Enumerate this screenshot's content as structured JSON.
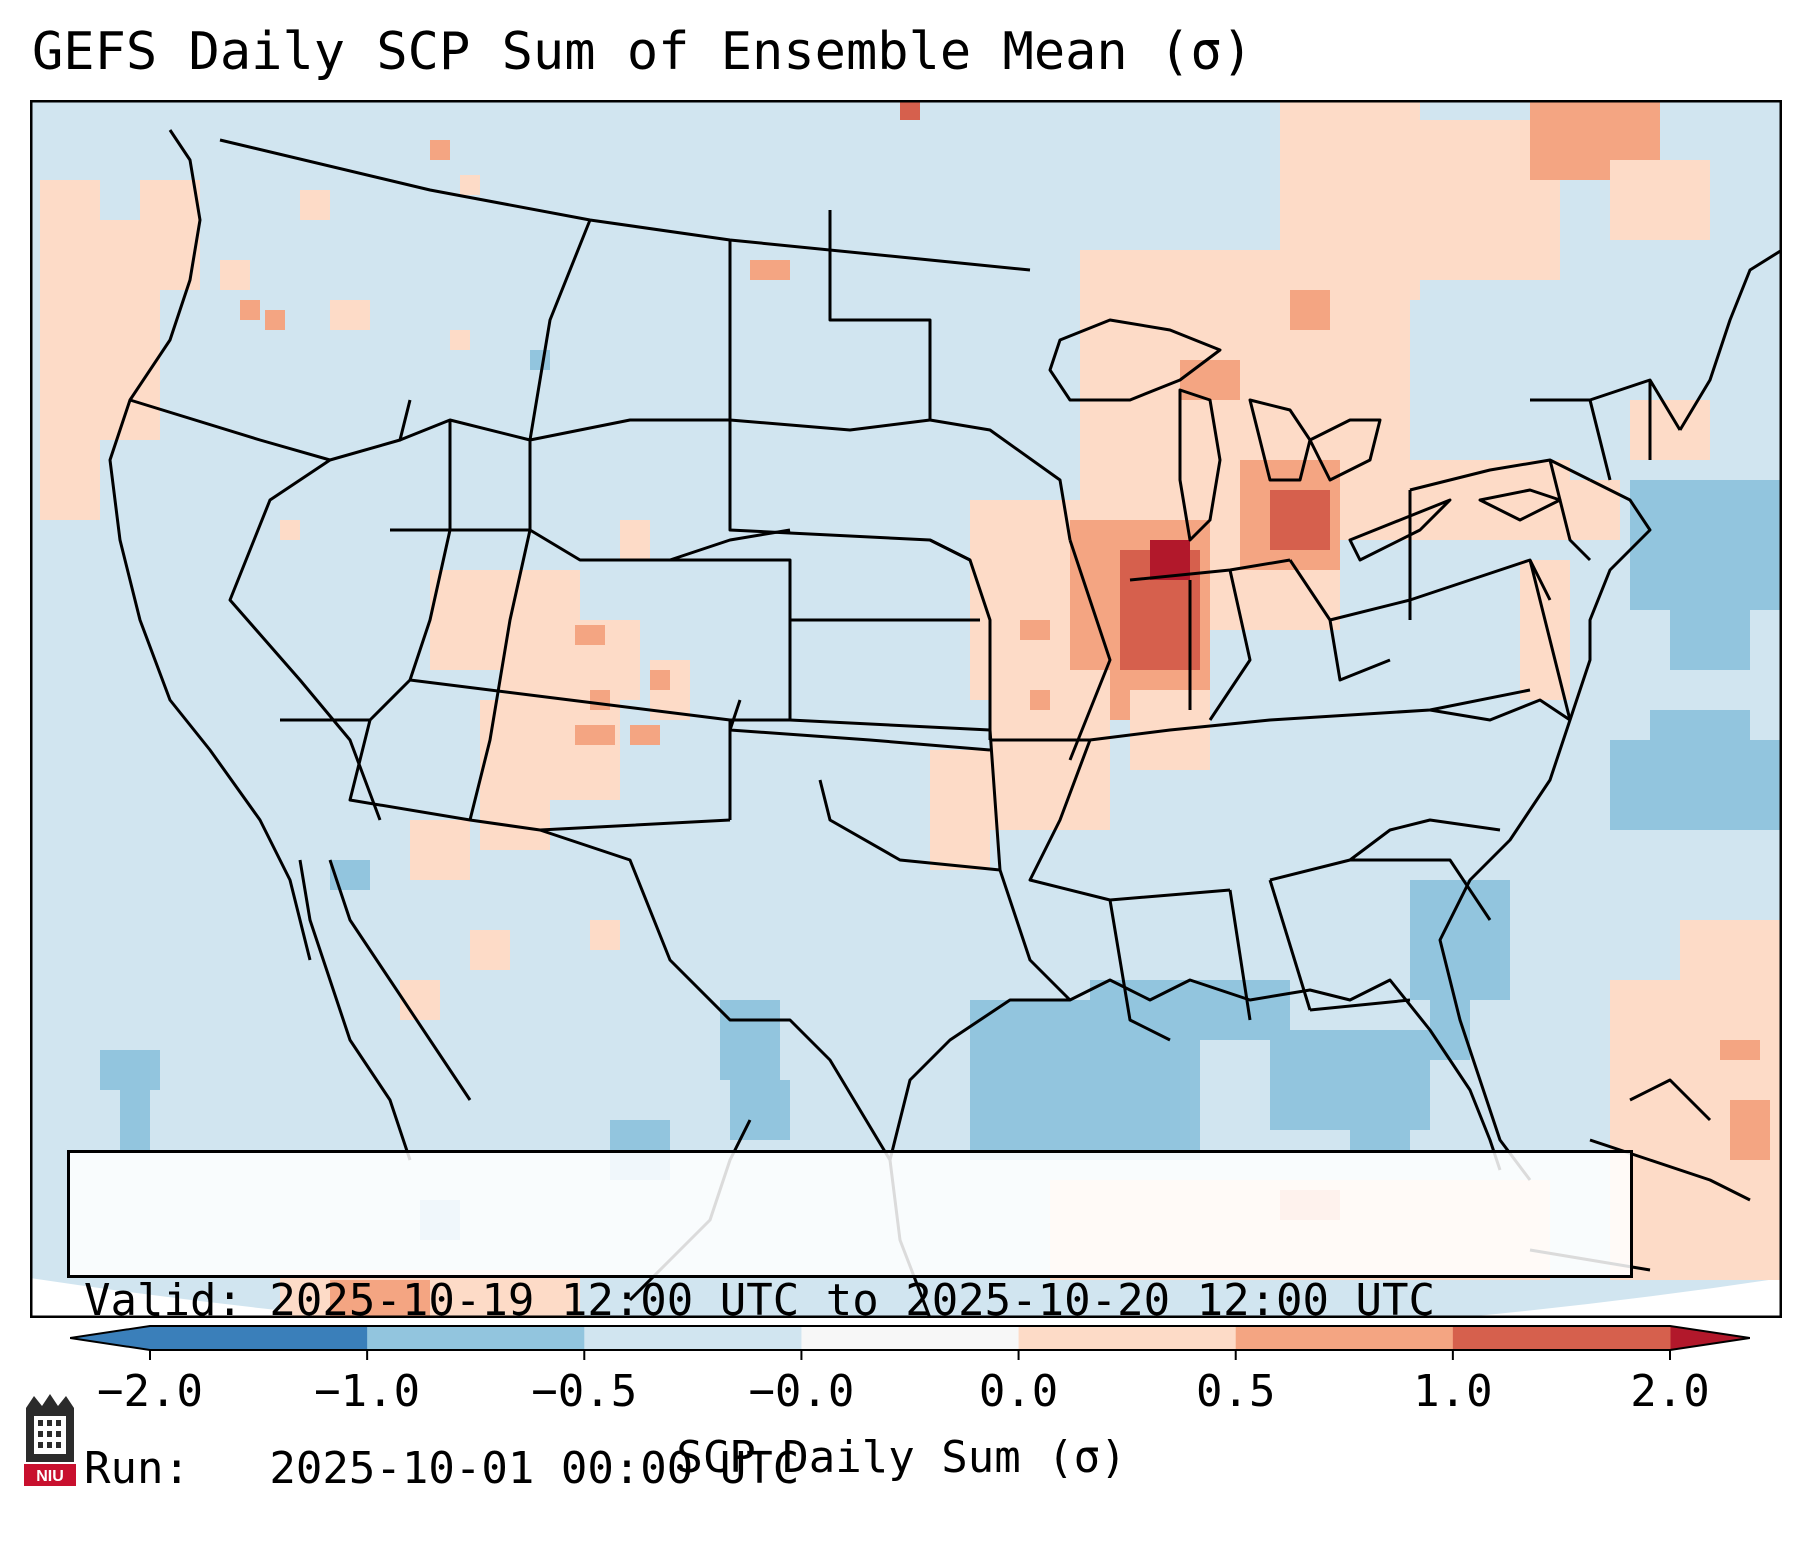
{
  "title": "GEFS Daily SCP Sum of Ensemble Mean (σ)",
  "info": {
    "valid": "Valid: 2025-10-19 12:00 UTC to 2025-10-20 12:00 UTC",
    "run": "Run:   2025-10-01 00:00 UTC"
  },
  "colorbar": {
    "label": "SCP Daily Sum (σ)",
    "ticks": [
      "−2.0",
      "−1.0",
      "−0.5",
      "−0.0",
      "0.0",
      "0.5",
      "1.0",
      "2.0"
    ],
    "colors": [
      "#3a7fba",
      "#92c5de",
      "#d1e5f0",
      "#f7f7f7",
      "#fddbc7",
      "#f4a582",
      "#d6604d",
      "#b2182b"
    ]
  },
  "map": {
    "background_color": "#d1e5f0",
    "outside_color": "#ffffff"
  },
  "logo": {
    "text": "NIU"
  }
}
